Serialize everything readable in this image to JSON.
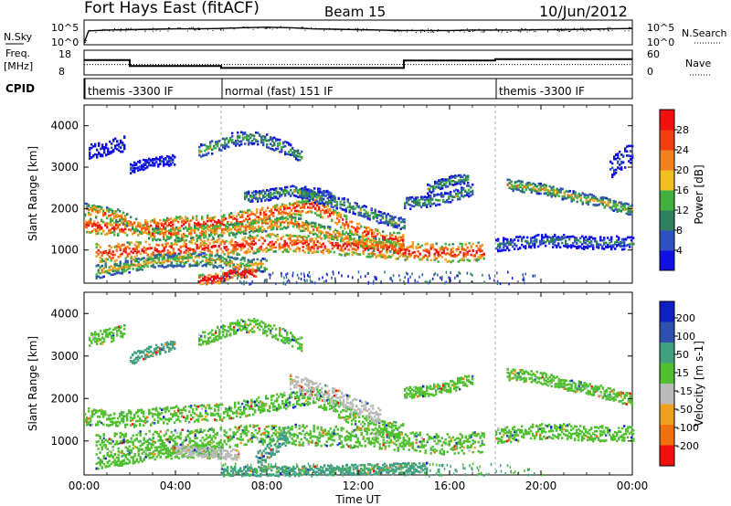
{
  "header": {
    "station": "Fort Hays East (fitACF)",
    "beam": "Beam 15",
    "date": "10/Jun/2012"
  },
  "colors": {
    "range_gate_scatter": [
      "#1010e0",
      "#3050c0",
      "#308060",
      "#40b040",
      "#f0a020",
      "#f06010",
      "#f01010"
    ],
    "velocity_palette": [
      "#f01010",
      "#f07010",
      "#f0a020",
      "#bbbbbb",
      "#50c030",
      "#40a080",
      "#3050b0",
      "#1020c0"
    ]
  },
  "chart_data": [
    {
      "type": "line",
      "name": "noise-panel",
      "left_label": "N.Sky",
      "right_label": "N.Search",
      "left_ticks": [
        "10^5",
        "10^0"
      ],
      "right_ticks": [
        "10^5",
        "10^0"
      ],
      "series": [
        {
          "name": "N.Sky",
          "x": [
            0,
            0.2,
            1,
            2,
            3,
            4,
            5,
            6,
            7,
            8,
            9,
            10,
            11,
            12,
            13,
            14,
            15,
            16,
            17,
            18,
            19,
            20,
            21,
            22,
            23,
            24
          ],
          "y": [
            0,
            3.0,
            3.2,
            3.3,
            3.4,
            3.5,
            3.5,
            3.6,
            3.8,
            3.9,
            3.8,
            3.5,
            3.4,
            3.3,
            3.2,
            3.1,
            3.1,
            3.1,
            3.2,
            3.2,
            3.2,
            3.3,
            3.3,
            3.4,
            3.5,
            3.6
          ]
        }
      ]
    },
    {
      "type": "line",
      "name": "frequency-panel",
      "left_label": "Freq.",
      "left_unit": "[MHz]",
      "left_ticks": [
        18,
        8
      ],
      "right_label": "Nave",
      "right_ticks": [
        60,
        0
      ],
      "ylim": [
        8,
        18
      ],
      "series": [
        {
          "name": "Freq",
          "x": [
            0,
            2,
            2,
            6,
            6,
            14,
            14,
            18,
            18,
            24
          ],
          "y": [
            14,
            14,
            11.6,
            11.6,
            10.8,
            10.8,
            13.8,
            13.8,
            14.4,
            14.4
          ]
        },
        {
          "name": "Nave",
          "x": [
            0,
            24
          ],
          "y": [
            12.2,
            12.2
          ]
        }
      ]
    },
    {
      "type": "table",
      "name": "cpid-panel",
      "label": "CPID",
      "segments": [
        {
          "start": 0,
          "text": "themis -3300 IF"
        },
        {
          "start": 6,
          "text": "normal (fast) 151 IF"
        },
        {
          "start": 18,
          "text": "themis -3300 IF"
        }
      ]
    },
    {
      "type": "heatmap",
      "name": "power-panel",
      "ylabel": "Slant Range [km]",
      "xlim": [
        0,
        24
      ],
      "ylim": [
        200,
        4500
      ],
      "y_ticks": [
        1000,
        2000,
        3000,
        4000
      ],
      "colorbar": {
        "label": "Power [dB]",
        "ticks": [
          4,
          8,
          12,
          16,
          20,
          24,
          28
        ],
        "colors": [
          "#1010e0",
          "#3050c0",
          "#308060",
          "#40b040",
          "#f0c020",
          "#f08020",
          "#f04010",
          "#f01010"
        ]
      },
      "bands": [
        {
          "x": [
            0.0,
            2.0,
            4.0,
            6.0,
            7.0,
            8.0,
            9.0,
            10.0,
            11.0,
            12.0,
            13.0,
            14.0
          ],
          "y": [
            1600,
            1550,
            1650,
            1700,
            1800,
            1900,
            2000,
            2100,
            1800,
            1500,
            1300,
            1250
          ],
          "width": 180,
          "level": 6
        },
        {
          "x": [
            0.0,
            1.5,
            3.0,
            6.0,
            7.5,
            9.0,
            10.0,
            11.0,
            12.0,
            13.5,
            14.0
          ],
          "y": [
            2000,
            1850,
            1400,
            1500,
            1600,
            1700,
            1550,
            1400,
            1200,
            1100,
            1000
          ],
          "width": 150,
          "level": 5
        },
        {
          "x": [
            0.5,
            2.0,
            4.0,
            6.0,
            8.0,
            10.0,
            12.0,
            14.0,
            16.0,
            17.5
          ],
          "y": [
            950,
            1000,
            1050,
            1100,
            1200,
            1150,
            1100,
            1000,
            950,
            1000
          ],
          "width": 220,
          "level": 6
        },
        {
          "x": [
            0.5,
            1.5,
            3.0,
            5.0,
            6.0,
            7.0,
            8.0
          ],
          "y": [
            500,
            600,
            750,
            800,
            750,
            700,
            650
          ],
          "width": 160,
          "level": 4
        },
        {
          "x": [
            5.0,
            6.0,
            6.5,
            7.5
          ],
          "y": [
            300,
            350,
            500,
            450
          ],
          "width": 120,
          "level": 7
        },
        {
          "x": [
            7.0,
            8.0,
            9.0,
            10.0,
            11.0
          ],
          "y": [
            2300,
            2350,
            2450,
            2400,
            2300
          ],
          "width": 130,
          "level": 3
        },
        {
          "x": [
            9.5,
            10.5,
            11.5,
            12.5,
            13.5,
            14.0
          ],
          "y": [
            2400,
            2250,
            2100,
            1900,
            1700,
            1650
          ],
          "width": 150,
          "level": 3
        },
        {
          "x": [
            14.0,
            15.0,
            16.0,
            17.0
          ],
          "y": [
            2150,
            2200,
            2300,
            2500
          ],
          "width": 140,
          "level": 3
        },
        {
          "x": [
            15.0,
            16.0,
            16.8
          ],
          "y": [
            2500,
            2700,
            2750
          ],
          "width": 120,
          "level": 3
        },
        {
          "x": [
            18.5,
            20.0,
            21.5,
            22.5,
            23.5,
            24.0
          ],
          "y": [
            2600,
            2500,
            2300,
            2200,
            2050,
            2000
          ],
          "width": 130,
          "level": 4
        },
        {
          "x": [
            18.0,
            19.0,
            20.0,
            21.0,
            22.0,
            23.0,
            24.0
          ],
          "y": [
            1150,
            1200,
            1250,
            1250,
            1200,
            1200,
            1200
          ],
          "width": 160,
          "level": 2
        },
        {
          "x": [
            5.0,
            6.5,
            7.5,
            8.5,
            9.5
          ],
          "y": [
            3400,
            3700,
            3750,
            3550,
            3300
          ],
          "width": 160,
          "level": 3
        },
        {
          "x": [
            0.2,
            1.0,
            1.8
          ],
          "y": [
            3400,
            3500,
            3600
          ],
          "width": 180,
          "level": 1
        },
        {
          "x": [
            2.0,
            3.0,
            4.0
          ],
          "y": [
            3000,
            3150,
            3200
          ],
          "width": 120,
          "level": 1
        },
        {
          "x": [
            23.0,
            24.0
          ],
          "y": [
            3000,
            3400
          ],
          "width": 250,
          "level": 1
        }
      ]
    },
    {
      "type": "heatmap",
      "name": "velocity-panel",
      "ylabel": "Slant Range [km]",
      "xlabel": "Time UT",
      "xlim": [
        0,
        24
      ],
      "ylim": [
        200,
        4500
      ],
      "y_ticks": [
        1000,
        2000,
        3000,
        4000
      ],
      "x_ticks": [
        "00:00",
        "04:00",
        "08:00",
        "12:00",
        "16:00",
        "20:00",
        "00:00"
      ],
      "x_tick_values": [
        0,
        4,
        8,
        12,
        16,
        20,
        24
      ],
      "colorbar": {
        "label": "Velocity [m s-1]",
        "ticks": [
          200,
          100,
          50,
          15,
          -15,
          -50,
          -100,
          -200
        ],
        "colors": [
          "#1020c0",
          "#3050b0",
          "#40a080",
          "#50c030",
          "#bbbbbb",
          "#f0a020",
          "#f07010",
          "#f01010"
        ]
      },
      "bands": [
        {
          "x": [
            0.0,
            2.0,
            4.0,
            6.0,
            7.0,
            8.0,
            9.0,
            10.0,
            11.0,
            12.0,
            13.0,
            14.0
          ],
          "y": [
            1600,
            1550,
            1650,
            1700,
            1800,
            1900,
            2000,
            2100,
            1800,
            1500,
            1300,
            1250
          ],
          "width": 200,
          "level": 4
        },
        {
          "x": [
            0.5,
            2.0,
            4.0,
            6.0,
            8.0,
            10.0,
            12.0,
            14.0,
            16.0,
            17.5
          ],
          "y": [
            950,
            1000,
            1050,
            1100,
            1200,
            1150,
            1100,
            1000,
            950,
            1000
          ],
          "width": 240,
          "level": 4
        },
        {
          "x": [
            0.5,
            1.5,
            3.0,
            5.0,
            6.0
          ],
          "y": [
            500,
            600,
            750,
            800,
            750
          ],
          "width": 160,
          "level": 4
        },
        {
          "x": [
            4.0,
            5.0,
            6.0,
            6.8
          ],
          "y": [
            800,
            750,
            720,
            700
          ],
          "width": 120,
          "level": 3
        },
        {
          "x": [
            7.5,
            8.0,
            8.5,
            9.0
          ],
          "y": [
            500,
            800,
            1000,
            1200
          ],
          "width": 220,
          "level": 5
        },
        {
          "x": [
            9.0,
            10.0,
            11.0,
            12.0,
            13.0
          ],
          "y": [
            2400,
            2250,
            2050,
            1800,
            1600
          ],
          "width": 200,
          "level": 3
        },
        {
          "x": [
            14.0,
            15.0,
            16.0,
            17.0
          ],
          "y": [
            2150,
            2200,
            2300,
            2500
          ],
          "width": 140,
          "level": 4
        },
        {
          "x": [
            18.5,
            20.0,
            21.5,
            22.5,
            23.5,
            24.0
          ],
          "y": [
            2600,
            2500,
            2300,
            2200,
            2050,
            2000
          ],
          "width": 140,
          "level": 4
        },
        {
          "x": [
            18.0,
            19.0,
            20.0,
            21.0,
            22.0,
            23.0,
            24.0
          ],
          "y": [
            1150,
            1200,
            1250,
            1250,
            1200,
            1200,
            1200
          ],
          "width": 180,
          "level": 4
        },
        {
          "x": [
            5.0,
            6.5,
            7.5,
            8.5,
            9.5
          ],
          "y": [
            3400,
            3700,
            3750,
            3550,
            3300
          ],
          "width": 160,
          "level": 4
        },
        {
          "x": [
            2.0,
            3.0,
            4.0
          ],
          "y": [
            2950,
            3150,
            3300
          ],
          "width": 130,
          "level": 5
        },
        {
          "x": [
            0.2,
            1.0,
            1.8
          ],
          "y": [
            3400,
            3500,
            3600
          ],
          "width": 160,
          "level": 4
        },
        {
          "x": [
            6.0,
            9.0,
            12.0,
            15.0
          ],
          "y": [
            300,
            320,
            350,
            400
          ],
          "width": 120,
          "level": 5
        }
      ]
    }
  ]
}
